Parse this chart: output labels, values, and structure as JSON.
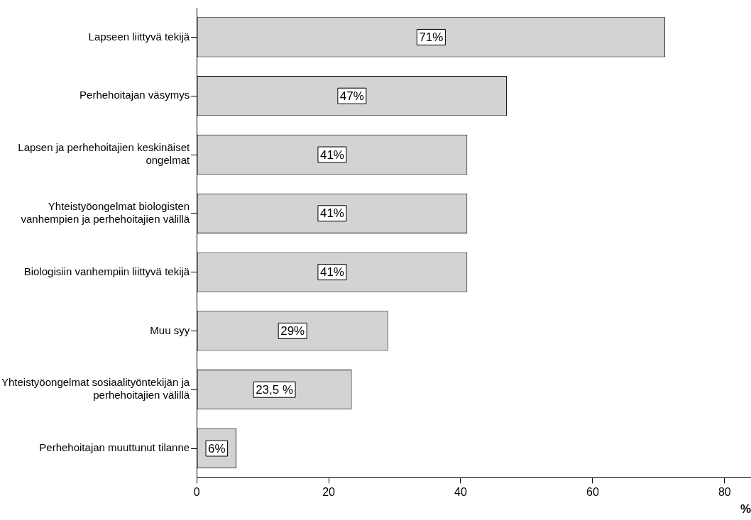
{
  "chart_data": {
    "type": "bar",
    "orientation": "horizontal",
    "categories": [
      "Lapseen liittyvä tekijä",
      "Perhehoitajan väsymys",
      "Lapsen ja perhehoitajien keskinäiset ongelmat",
      "Yhteistyöongelmat biologisten vanhempien ja perhehoitajien välillä",
      "Biologisiin vanhempiin liittyvä tekijä",
      "Muu syy",
      "Yhteistyöongelmat sosiaalityöntekijän ja perhehoitajien välillä",
      "Perhehoitajan muuttunut tilanne"
    ],
    "values": [
      71,
      47,
      41,
      41,
      41,
      29,
      23.5,
      6
    ],
    "value_labels": [
      "71%",
      "47%",
      "41%",
      "41%",
      "41%",
      "29%",
      "23,5 %",
      "6%"
    ],
    "color": "#d3d3d3",
    "xlabel": "%",
    "xlim": [
      0,
      84
    ],
    "xticks": [
      0,
      20,
      40,
      60,
      80
    ],
    "grid": false,
    "legend": false
  }
}
